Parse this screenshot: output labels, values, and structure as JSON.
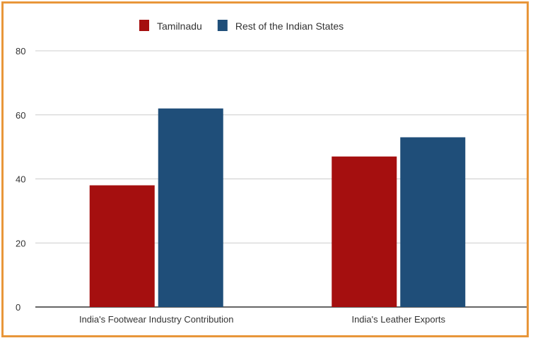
{
  "chart_data": {
    "type": "bar",
    "title": "",
    "xlabel": "",
    "ylabel": "",
    "categories": [
      "India's Footwear Industry Contribution",
      "India's Leather Exports"
    ],
    "series": [
      {
        "name": "Tamilnadu",
        "color": "#a50f0f",
        "values": [
          38,
          47
        ]
      },
      {
        "name": "Rest of the Indian States",
        "color": "#1f4e79",
        "values": [
          62,
          53
        ]
      }
    ],
    "ylim": [
      0,
      80
    ],
    "yticks": [
      "0",
      "20",
      "40",
      "60",
      "80"
    ],
    "grid": true,
    "legend": "top"
  }
}
